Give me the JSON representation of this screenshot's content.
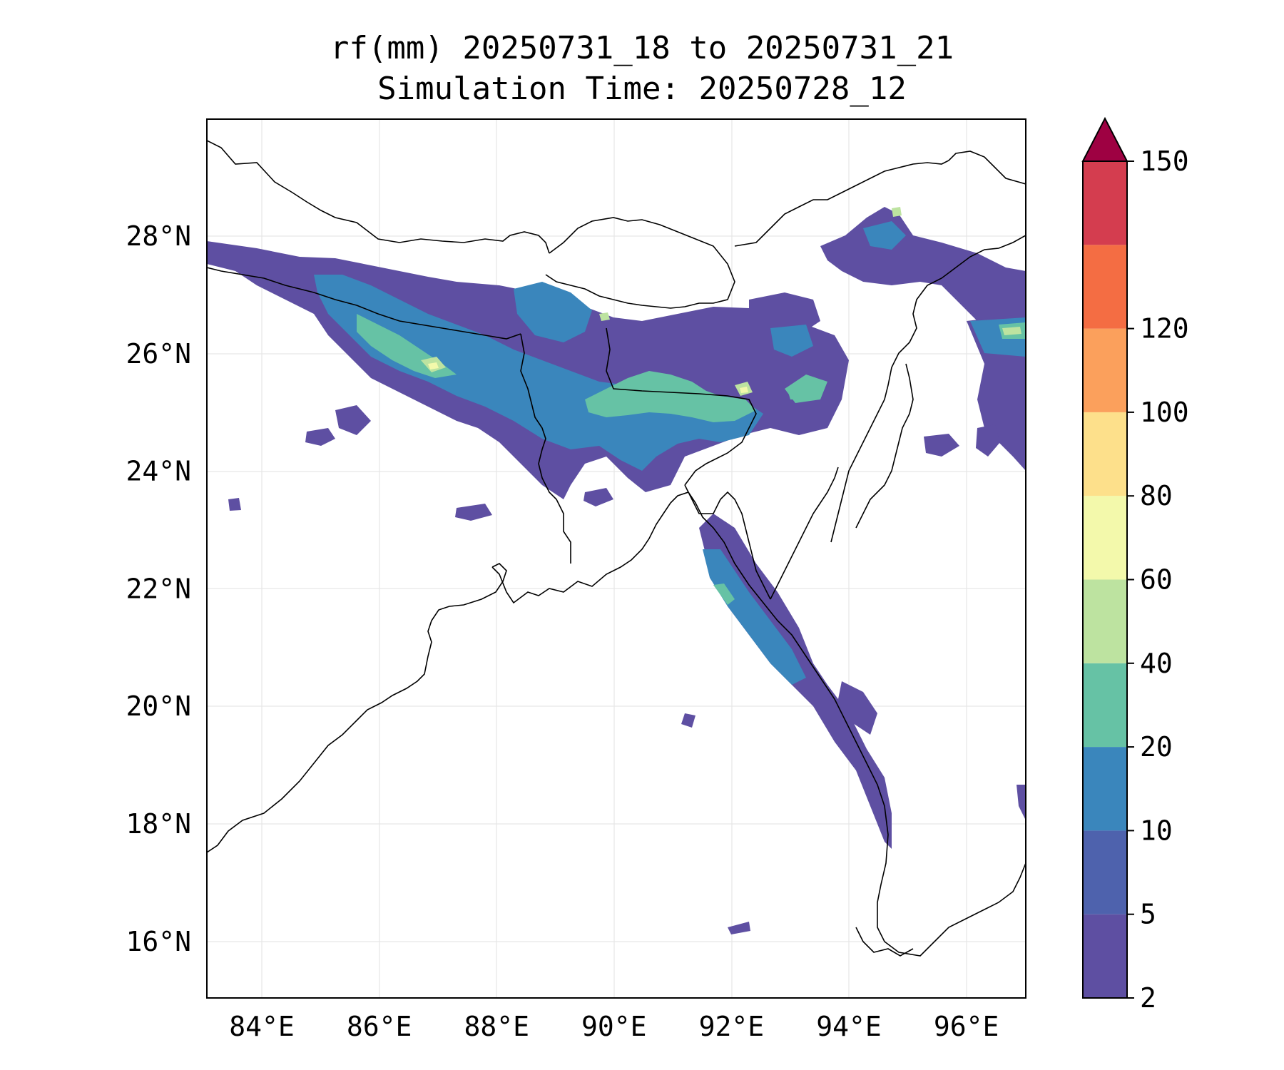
{
  "title": {
    "line1": "rf(mm) 20250731_18 to 20250731_21",
    "line2": "Simulation Time: 20250728_12"
  },
  "map": {
    "lat_ticks": [
      "28°N",
      "26°N",
      "24°N",
      "22°N",
      "20°N",
      "18°N",
      "16°N"
    ],
    "lon_ticks": [
      "84°E",
      "86°E",
      "88°E",
      "90°E",
      "92°E",
      "94°E",
      "96°E"
    ],
    "lon_range": [
      83.1,
      97.0
    ],
    "lat_range": [
      15.1,
      30.0
    ],
    "grid": true
  },
  "colorbar": {
    "levels": [
      "2",
      "5",
      "10",
      "20",
      "40",
      "60",
      "80",
      "100",
      "120",
      "150"
    ],
    "colors": [
      "#5e4fa2",
      "#4e62ad",
      "#3a86bc",
      "#66c2a5",
      "#bde3a0",
      "#f3f9ab",
      "#fde08b",
      "#fba05c",
      "#f46d43",
      "#d43d4f"
    ],
    "extend_color": "#9e0142",
    "extend": "max"
  },
  "rainfall_colors": {
    "light": "#5e4fa2",
    "moderate": "#3a86bc",
    "heavy": "#66c2a5",
    "very_heavy": "#bde3a0",
    "peak": "#f3f9ab"
  }
}
